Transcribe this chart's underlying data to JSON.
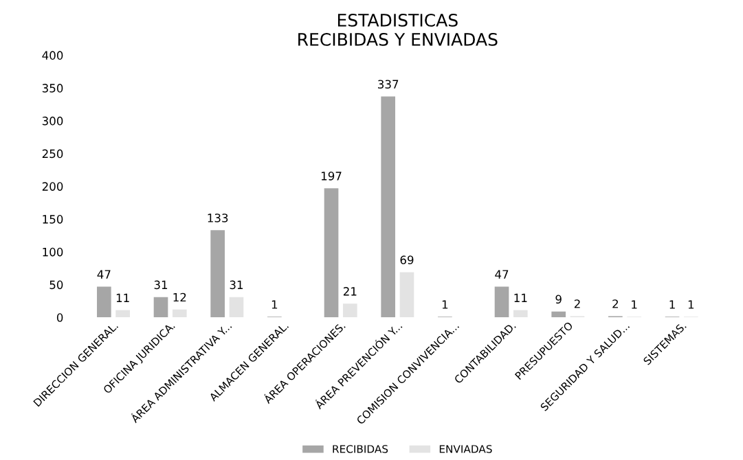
{
  "chart_data": {
    "type": "bar",
    "title": "ESTADISTICAS\nRECIBIDAS Y ENVIADAS",
    "categories": [
      "DIRECCION GENERAL.",
      "OFICINA JURIDICA.",
      "ÁREA ADMINISTRATIVA Y...",
      "ALMACEN GENERAL.",
      "ÁREA OPERACIONES.",
      "ÁREA PREVENCIÓN Y...",
      "COMISION CONVIVENCIA...",
      "CONTABILIDAD.",
      "PRESUPUESTO",
      "SEGURIDAD Y SALUD...",
      "SISTEMAS."
    ],
    "series": [
      {
        "name": "RECIBIDAS",
        "color": "#a6a6a6",
        "values": [
          47,
          31,
          133,
          1,
          197,
          337,
          1,
          47,
          9,
          2,
          1
        ]
      },
      {
        "name": "ENVIADAS",
        "color": "#e3e3e3",
        "values": [
          11,
          12,
          31,
          null,
          21,
          69,
          null,
          11,
          2,
          1,
          1
        ]
      }
    ],
    "ylim": [
      0,
      400
    ],
    "yticks": [
      0,
      50,
      100,
      150,
      200,
      250,
      300,
      350,
      400
    ],
    "data_labels": true,
    "grid": false,
    "legend": "bottom"
  }
}
